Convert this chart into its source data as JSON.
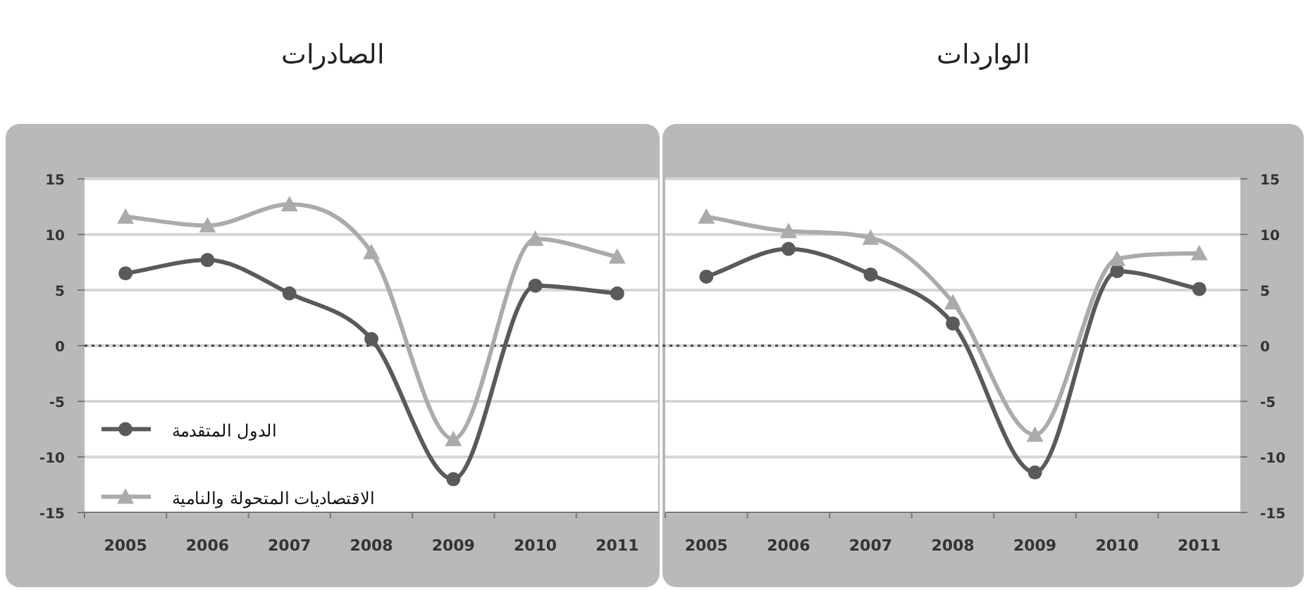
{
  "chart_data": [
    {
      "type": "line",
      "title": "الصادرات",
      "categories": [
        "2005",
        "2006",
        "2007",
        "2008",
        "2009",
        "2010",
        "2011"
      ],
      "ylim": [
        -15,
        15
      ],
      "yticks": [
        -15,
        -10,
        -5,
        0,
        5,
        10,
        15
      ],
      "grid": "y",
      "legend": "bottom left",
      "line_style": "solid",
      "ref_lines": [
        {
          "axis": "y",
          "value": 0,
          "color": "#444444",
          "line_style": "dotted"
        }
      ],
      "series": [
        {
          "name": "الدول المتقدمة",
          "color": "#5a5a5a",
          "marker": "circle",
          "values": [
            6.5,
            7.7,
            4.7,
            0.6,
            -12.0,
            5.4,
            4.7
          ]
        },
        {
          "name": "الاقتصادیات المتحولة والنامیة",
          "color": "#ababab",
          "marker": "triangle",
          "values": [
            11.6,
            10.8,
            12.7,
            8.4,
            -8.4,
            9.6,
            8.0
          ]
        }
      ]
    },
    {
      "type": "line",
      "title": "الواردات",
      "categories": [
        "2005",
        "2006",
        "2007",
        "2008",
        "2009",
        "2010",
        "2011"
      ],
      "ylim": [
        -15,
        15
      ],
      "yticks": [
        -15,
        -10,
        -5,
        0,
        5,
        10,
        15
      ],
      "grid": "y",
      "line_style": "solid",
      "ref_lines": [
        {
          "axis": "y",
          "value": 0,
          "color": "#444444",
          "line_style": "dotted"
        }
      ],
      "series": [
        {
          "color": "#5a5a5a",
          "marker": "circle",
          "values": [
            6.2,
            8.7,
            6.4,
            2.0,
            -11.4,
            6.7,
            5.1
          ]
        },
        {
          "color": "#ababab",
          "marker": "triangle",
          "values": [
            11.6,
            10.3,
            9.7,
            3.9,
            -8.0,
            7.8,
            8.3
          ]
        }
      ]
    }
  ]
}
